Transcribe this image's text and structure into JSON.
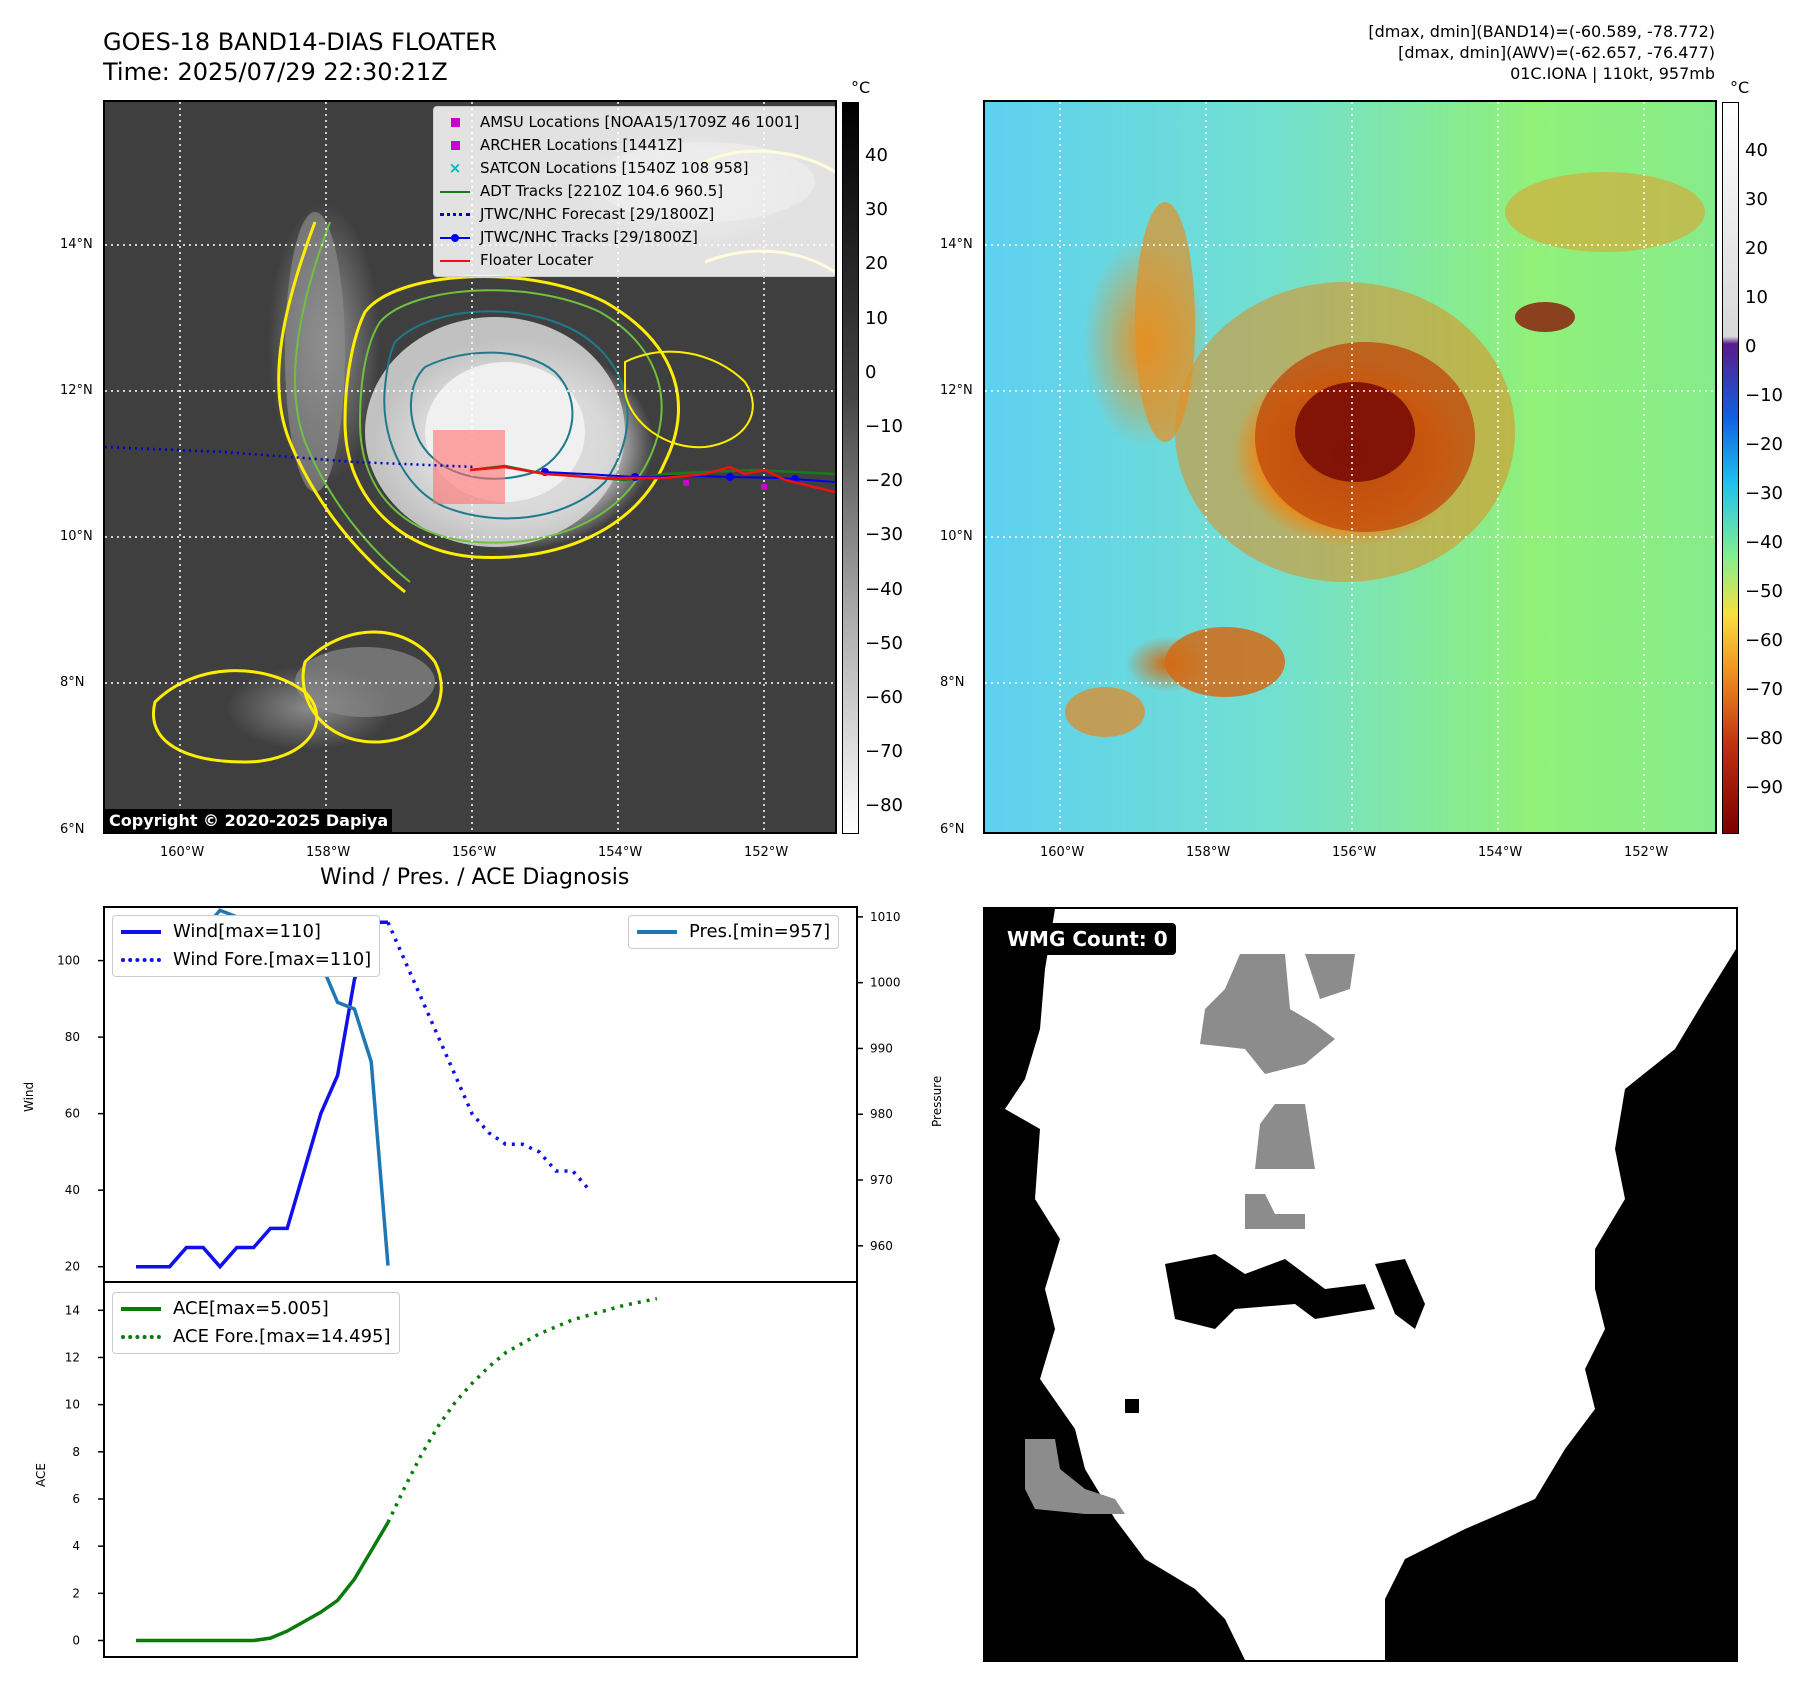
{
  "header": {
    "title_line1": "GOES-18 BAND14-DIAS FLOATER",
    "title_line2": "Time: 2025/07/29 22:30:21Z",
    "right_line1": "[dmax, dmin](BAND14)=(-60.589, -78.772)",
    "right_line2": "[dmax, dmin](AWV)=(-62.657, -76.477)",
    "right_line3": "01C.IONA | 110kt, 957mb"
  },
  "map_axes": {
    "lat_labels": [
      "14°N",
      "12°N",
      "10°N",
      "8°N",
      "6°N"
    ],
    "lon_labels": [
      "160°W",
      "158°W",
      "156°W",
      "154°W",
      "152°W"
    ]
  },
  "colorbar_gray": {
    "unit": "°C",
    "labels": [
      "40",
      "30",
      "20",
      "10",
      "0",
      "−10",
      "−20",
      "−30",
      "−40",
      "−50",
      "−60",
      "−70",
      "−80"
    ]
  },
  "colorbar_color": {
    "unit": "°C",
    "labels": [
      "40",
      "30",
      "20",
      "10",
      "0",
      "−10",
      "−20",
      "−30",
      "−40",
      "−50",
      "−60",
      "−70",
      "−80",
      "−90"
    ]
  },
  "map_legend": {
    "items": [
      {
        "label": "AMSU Locations [NOAA15/1709Z 46 1001]",
        "marker": "square",
        "color": "#cc00cc"
      },
      {
        "label": "ARCHER Locations [1441Z]",
        "marker": "square",
        "color": "#cc00cc"
      },
      {
        "label": "SATCON Locations [1540Z 108 958]",
        "marker": "x",
        "color": "#00b8b8"
      },
      {
        "label": "ADT Tracks [2210Z 104.6 960.5]",
        "marker": "line",
        "color": "#1a7a1a"
      },
      {
        "label": "JTWC/NHC Forecast [29/1800Z]",
        "marker": "dotted",
        "color": "#0000cc"
      },
      {
        "label": "JTWC/NHC Tracks [29/1800Z]",
        "marker": "dotline",
        "color": "#0000ee"
      },
      {
        "label": "Floater Locater",
        "marker": "line",
        "color": "#ee1111"
      }
    ]
  },
  "copyright": "Copyright © 2020-2025 Dapiya",
  "diagnosis": {
    "title": "Wind / Pres. / ACE Diagnosis",
    "wind_ylabel": "Wind",
    "pres_ylabel": "Pressure",
    "ace_ylabel": "ACE",
    "wind_legend": [
      "Wind[max=110]",
      "Wind Fore.[max=110]"
    ],
    "pres_legend": "Pres.[min=957]",
    "ace_legend": [
      "ACE[max=5.005]",
      "ACE Fore.[max=14.495]"
    ]
  },
  "wmg": {
    "badge": "WMG Count: 0"
  },
  "colors": {
    "wind": "#1010ee",
    "pressure": "#1f77b4",
    "ace": "#0a7a0a"
  },
  "chart_data": [
    {
      "type": "line",
      "name": "wind",
      "series": [
        {
          "name": "Wind[max=110]",
          "x": [
            0,
            1,
            2,
            3,
            4,
            5,
            6,
            7,
            8,
            9,
            10,
            11,
            12,
            13,
            14,
            15
          ],
          "values": [
            20,
            20,
            20,
            25,
            25,
            20,
            25,
            25,
            30,
            30,
            45,
            60,
            70,
            95,
            110,
            110
          ]
        },
        {
          "name": "Wind Fore.[max=110]",
          "x": [
            15,
            16,
            17,
            18,
            19,
            20,
            21,
            22,
            23,
            24,
            25,
            26,
            27
          ],
          "values": [
            110,
            100,
            90,
            80,
            70,
            60,
            55,
            52,
            52,
            50,
            45,
            45,
            40
          ]
        }
      ],
      "ylim": [
        16,
        114
      ],
      "yticks": [
        20,
        40,
        60,
        80,
        100
      ],
      "ylabel": "Wind"
    },
    {
      "type": "line",
      "name": "pressure",
      "series": [
        {
          "name": "Pres.[min=957]",
          "x": [
            0,
            1,
            2,
            3,
            4,
            5,
            6,
            7,
            8,
            9,
            10,
            11,
            12,
            13,
            14,
            15
          ],
          "values": [
            1010,
            1010,
            1009,
            1008,
            1008,
            1011,
            1010,
            1010,
            1009,
            1009,
            1006,
            1003,
            997,
            996,
            988,
            957
          ]
        }
      ],
      "ylim": [
        954.5,
        1011.5
      ],
      "yticks": [
        960,
        970,
        980,
        990,
        1000,
        1010
      ],
      "ylabel": "Pressure"
    },
    {
      "type": "line",
      "name": "ace",
      "series": [
        {
          "name": "ACE[max=5.005]",
          "x": [
            0,
            1,
            2,
            3,
            4,
            5,
            6,
            7,
            8,
            9,
            10,
            11,
            12,
            13,
            14,
            15
          ],
          "values": [
            0,
            0,
            0,
            0,
            0,
            0,
            0,
            0,
            0.1,
            0.4,
            0.8,
            1.2,
            1.7,
            2.6,
            3.8,
            5.005
          ]
        },
        {
          "name": "ACE Fore.[max=14.495]",
          "x": [
            15,
            16,
            17,
            18,
            19,
            20,
            21,
            22,
            23,
            24,
            25,
            26,
            27,
            28,
            29,
            30,
            31
          ],
          "values": [
            5.005,
            6.5,
            7.9,
            9.1,
            10.1,
            10.9,
            11.6,
            12.2,
            12.6,
            13.0,
            13.3,
            13.6,
            13.8,
            14.0,
            14.2,
            14.35,
            14.495
          ]
        }
      ],
      "ylim": [
        -0.7,
        15.2
      ],
      "yticks": [
        0,
        2,
        4,
        6,
        8,
        10,
        12,
        14
      ],
      "ylabel": "ACE"
    }
  ]
}
